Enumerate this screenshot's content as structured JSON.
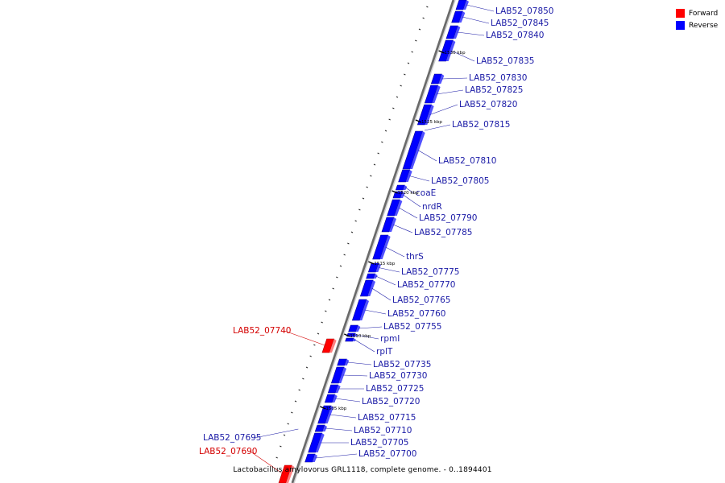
{
  "legend": {
    "forward_label": "Forward",
    "forward_color": "#ff0000",
    "reverse_label": "Reverse",
    "reverse_color": "#0000ff"
  },
  "caption": "Lactobacillus amylovorus GRL1118, complete genome. - 0..1894401",
  "colors": {
    "forward_label": "#d40000",
    "reverse_label": "#1a1aa6",
    "backbone": "#888888"
  },
  "scale": {
    "unit": "kbp",
    "ticks_kbp": [
      1530,
      1525,
      1520,
      1515,
      1510,
      1505
    ]
  },
  "genes": [
    {
      "label": "LAB52_07850",
      "strand": "reverse"
    },
    {
      "label": "LAB52_07845",
      "strand": "reverse"
    },
    {
      "label": "LAB52_07840",
      "strand": "reverse"
    },
    {
      "label": "LAB52_07835",
      "strand": "reverse"
    },
    {
      "label": "LAB52_07830",
      "strand": "reverse"
    },
    {
      "label": "LAB52_07825",
      "strand": "reverse"
    },
    {
      "label": "LAB52_07820",
      "strand": "reverse"
    },
    {
      "label": "LAB52_07815",
      "strand": "reverse"
    },
    {
      "label": "LAB52_07810",
      "strand": "reverse"
    },
    {
      "label": "LAB52_07805",
      "strand": "reverse"
    },
    {
      "label": "coaE",
      "strand": "reverse"
    },
    {
      "label": "nrdR",
      "strand": "reverse"
    },
    {
      "label": "LAB52_07790",
      "strand": "reverse"
    },
    {
      "label": "LAB52_07785",
      "strand": "reverse"
    },
    {
      "label": "thrS",
      "strand": "reverse"
    },
    {
      "label": "LAB52_07775",
      "strand": "reverse"
    },
    {
      "label": "LAB52_07770",
      "strand": "reverse"
    },
    {
      "label": "LAB52_07765",
      "strand": "reverse"
    },
    {
      "label": "LAB52_07760",
      "strand": "reverse"
    },
    {
      "label": "LAB52_07755",
      "strand": "reverse"
    },
    {
      "label": "rpmI",
      "strand": "reverse"
    },
    {
      "label": "rplT",
      "strand": "reverse"
    },
    {
      "label": "LAB52_07740",
      "strand": "forward"
    },
    {
      "label": "LAB52_07735",
      "strand": "reverse"
    },
    {
      "label": "LAB52_07730",
      "strand": "reverse"
    },
    {
      "label": "LAB52_07725",
      "strand": "reverse"
    },
    {
      "label": "LAB52_07720",
      "strand": "reverse"
    },
    {
      "label": "LAB52_07715",
      "strand": "reverse"
    },
    {
      "label": "LAB52_07710",
      "strand": "reverse"
    },
    {
      "label": "LAB52_07705",
      "strand": "reverse"
    },
    {
      "label": "LAB52_07700",
      "strand": "reverse"
    },
    {
      "label": "LAB52_07695",
      "strand": "reverse"
    },
    {
      "label": "LAB52_07690",
      "strand": "forward"
    }
  ]
}
